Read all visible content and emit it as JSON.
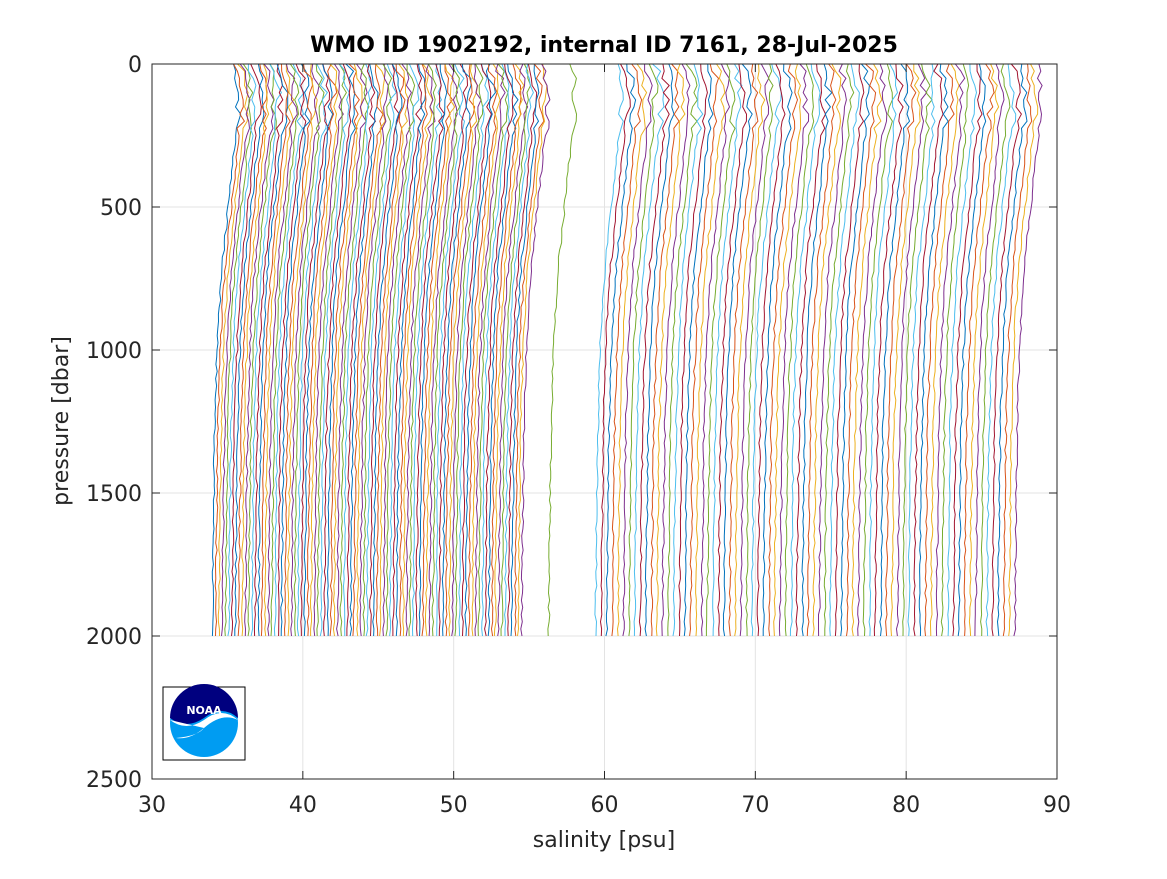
{
  "chart_data": {
    "type": "line",
    "title": "WMO ID 1902192, internal ID 7161, 28-Jul-2025",
    "xlabel": "salinity [psu]",
    "ylabel": "pressure [dbar]",
    "xlim": [
      30,
      90
    ],
    "ylim": [
      0,
      2500
    ],
    "y_reversed": true,
    "xticks": [
      30,
      40,
      50,
      60,
      70,
      80,
      90
    ],
    "yticks": [
      0,
      500,
      1000,
      1500,
      2000,
      2500
    ],
    "grid": true,
    "legend": "none",
    "note": "Waterfall of successive salinity profiles, each offset in x; ~170 profiles from ~0 to ~2000 dbar",
    "series_colors": [
      "#0072BD",
      "#D95319",
      "#EDB120",
      "#7E2F8E",
      "#77AC30",
      "#4DBEEE",
      "#A2142F"
    ],
    "profile_shape": {
      "pressure": [
        0,
        50,
        100,
        200,
        300,
        500,
        700,
        900,
        1100,
        1300,
        1500,
        1700,
        1900,
        2000
      ],
      "salinity_anomaly": [
        0.0,
        0.25,
        0.35,
        0.3,
        0.05,
        -0.35,
        -0.75,
        -1.0,
        -1.15,
        -1.25,
        -1.3,
        -1.35,
        -1.38,
        -1.4
      ]
    },
    "profile_groups": [
      {
        "first_surface_salinity": 35.4,
        "last_surface_salinity": 55.9,
        "count": 95,
        "max_pressure": 2000
      },
      {
        "first_surface_salinity": 57.7,
        "last_surface_salinity": 57.7,
        "count": 1,
        "max_pressure": 2000
      },
      {
        "first_surface_salinity": 60.8,
        "last_surface_salinity": 88.6,
        "count": 76,
        "max_pressure": 2000
      }
    ]
  },
  "logo": {
    "text": "NOAA",
    "name": "noaa-logo"
  }
}
